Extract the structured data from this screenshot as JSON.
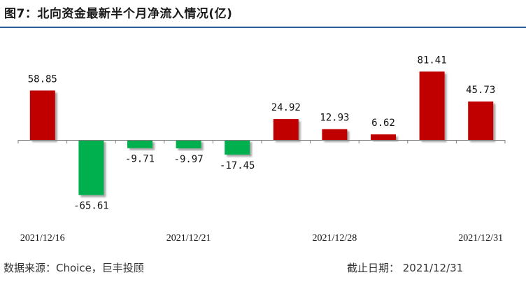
{
  "header": {
    "title": "图7：北向资金最新半个月净流入情况(亿)"
  },
  "footer": {
    "source": "数据来源：Choice，巨丰投顾",
    "date": "截止日期：  2021/12/31"
  },
  "colors": {
    "positive": "#c00000",
    "negative": "#00b050",
    "accent_rule": "#2f5d97"
  },
  "chart_data": {
    "type": "bar",
    "title": "图7：北向资金最新半个月净流入情况(亿)",
    "xlabel": "",
    "ylabel": "",
    "values": [
      58.85,
      -65.61,
      -9.71,
      -9.97,
      -17.45,
      24.92,
      12.93,
      6.62,
      81.41,
      45.73
    ],
    "value_labels": [
      "58.85",
      "-65.61",
      "-9.71",
      "-9.97",
      "-17.45",
      "24.92",
      "12.93",
      "6.62",
      "81.41",
      "45.73"
    ],
    "x_tick_labels": [
      {
        "index": 0,
        "label": "2021/12/16"
      },
      {
        "index": 3,
        "label": "2021/12/21"
      },
      {
        "index": 6,
        "label": "2021/12/28"
      },
      {
        "index": 9,
        "label": "2021/12/31"
      }
    ],
    "ylim": [
      -70,
      90
    ],
    "grid": false,
    "legend": "none"
  }
}
